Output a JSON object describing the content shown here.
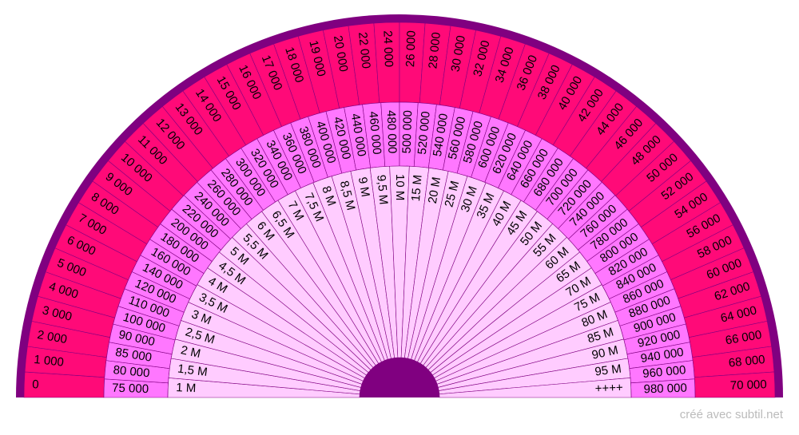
{
  "rings": [
    {
      "labels": [
        "0",
        "1 000",
        "2 000",
        "3 000",
        "4 000",
        "5 000",
        "6 000",
        "7 000",
        "8 000",
        "9 000",
        "10 000",
        "11 000",
        "12 000",
        "13 000",
        "14 000",
        "15 000",
        "16 000",
        "17 000",
        "18 000",
        "19 000",
        "20 000",
        "22 000",
        "24 000",
        "26 000",
        "28 000",
        "30 000",
        "32 000",
        "34 000",
        "36 000",
        "38 000",
        "40 000",
        "42 000",
        "44 000",
        "46 000",
        "48 000",
        "50 000",
        "52 000",
        "54 000",
        "56 000",
        "58 000",
        "60 000",
        "62 000",
        "64 000",
        "66 000",
        "68 000",
        "70 000"
      ]
    },
    {
      "labels": [
        "75 000",
        "80 000",
        "85 000",
        "90 000",
        "100 000",
        "110 000",
        "120 000",
        "140 000",
        "160 000",
        "180 000",
        "200 000",
        "220 000",
        "240 000",
        "260 000",
        "280 000",
        "300 000",
        "320 000",
        "340 000",
        "360 000",
        "380 000",
        "400 000",
        "420 000",
        "440 000",
        "460 000",
        "480 000",
        "500 000",
        "520 000",
        "540 000",
        "560 000",
        "580 000",
        "600 000",
        "620 000",
        "640 000",
        "660 000",
        "680 000",
        "700 000",
        "720 000",
        "740 000",
        "760 000",
        "780 000",
        "800 000",
        "820 000",
        "840 000",
        "860 000",
        "880 000",
        "900 000",
        "920 000",
        "940 000",
        "960 000",
        "980 000"
      ]
    },
    {
      "labels": [
        "1 M",
        "1,5 M",
        "2 M",
        "2,5 M",
        "3 M",
        "3,5 M",
        "4 M",
        "4,5 M",
        "5 M",
        "5,5 M",
        "6 M",
        "6,5 M",
        "7 M",
        "7,5 M",
        "8 M",
        "8,5 M",
        "9 M",
        "9,5 M",
        "10 M",
        "15 M",
        "20 M",
        "25 M",
        "30 M",
        "35 M",
        "40 M",
        "45 M",
        "50 M",
        "55 M",
        "60 M",
        "65 M",
        "70 M",
        "75 M",
        "80 M",
        "85 M",
        "90 M",
        "95 M",
        "++++"
      ]
    }
  ],
  "footer": "créé avec subtil.net"
}
